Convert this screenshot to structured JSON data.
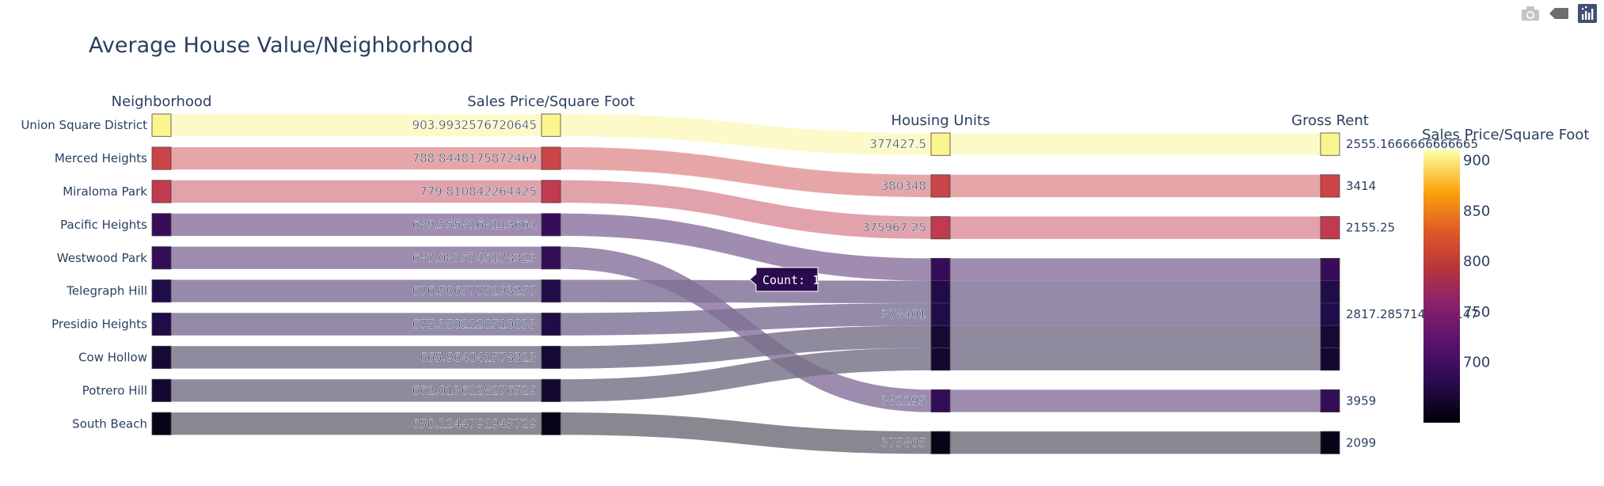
{
  "toolbar": {
    "buttons": [
      {
        "name": "camera-icon",
        "color": "#c4c4c4"
      },
      {
        "name": "tag-icon",
        "color": "#6e6e6e"
      },
      {
        "name": "plotly-logo-icon",
        "color": "#3f4f75"
      }
    ]
  },
  "chart_data": {
    "type": "parallel-categories",
    "title": "Average House Value/Neighborhood",
    "dimensions": [
      {
        "label": "Neighborhood",
        "categories": [
          "Union Square District",
          "Merced Heights",
          "Miraloma Park",
          "Pacific Heights",
          "Westwood Park",
          "Telegraph Hill",
          "Presidio Heights",
          "Cow Hollow",
          "Potrero Hill",
          "South Beach"
        ]
      },
      {
        "label": "Sales Price/Square Foot",
        "categories": [
          "903.9932576720645",
          "788.8448175872469",
          "779.810842264425",
          "689.5558168113664",
          "687.0875745178323",
          "676.5065775293257",
          "675.3502120510033",
          "665.964041578323",
          "662.0136128276529",
          "650.1244791945729"
        ]
      },
      {
        "label": "Housing Units",
        "categories": [
          "377427.5",
          "380348",
          "375967.25",
          "378401",
          "382295",
          "375805"
        ]
      },
      {
        "label": "Gross Rent",
        "categories": [
          "2555.1666666666665",
          "3414",
          "2155.25",
          "2817.2857142857147",
          "3959",
          "2099"
        ]
      }
    ],
    "records": [
      {
        "neighborhood": "Union Square District",
        "sale_price_sqr_foot": 903.9932576720645,
        "housing_units": 377427.5,
        "gross_rent": 2555.1666666666665
      },
      {
        "neighborhood": "Merced Heights",
        "sale_price_sqr_foot": 788.8448175872469,
        "housing_units": 380348,
        "gross_rent": 3414
      },
      {
        "neighborhood": "Miraloma Park",
        "sale_price_sqr_foot": 779.810842264425,
        "housing_units": 375967.25,
        "gross_rent": 2155.25
      },
      {
        "neighborhood": "Pacific Heights",
        "sale_price_sqr_foot": 689.5558168113664,
        "housing_units": 378401,
        "gross_rent": 2817.2857142857147
      },
      {
        "neighborhood": "Westwood Park",
        "sale_price_sqr_foot": 687.0875745178323,
        "housing_units": 382295,
        "gross_rent": 3959
      },
      {
        "neighborhood": "Telegraph Hill",
        "sale_price_sqr_foot": 676.5065775293257,
        "housing_units": 378401,
        "gross_rent": 2817.2857142857147
      },
      {
        "neighborhood": "Presidio Heights",
        "sale_price_sqr_foot": 675.3502120510033,
        "housing_units": 378401,
        "gross_rent": 2817.2857142857147
      },
      {
        "neighborhood": "Cow Hollow",
        "sale_price_sqr_foot": 665.964041578323,
        "housing_units": 378401,
        "gross_rent": 2817.2857142857147
      },
      {
        "neighborhood": "Potrero Hill",
        "sale_price_sqr_foot": 662.0136128276529,
        "housing_units": 378401,
        "gross_rent": 2817.2857142857147
      },
      {
        "neighborhood": "South Beach",
        "sale_price_sqr_foot": 650.1244791945729,
        "housing_units": 375805,
        "gross_rent": 2099
      }
    ],
    "colorbar": {
      "title": "Sales Price/Square Foot",
      "range": [
        640,
        910
      ],
      "ticks": [
        700,
        750,
        800,
        850,
        900
      ],
      "colorscale": "inferno"
    },
    "hover": {
      "text": "Count: 1",
      "record": "Pacific Heights"
    }
  }
}
